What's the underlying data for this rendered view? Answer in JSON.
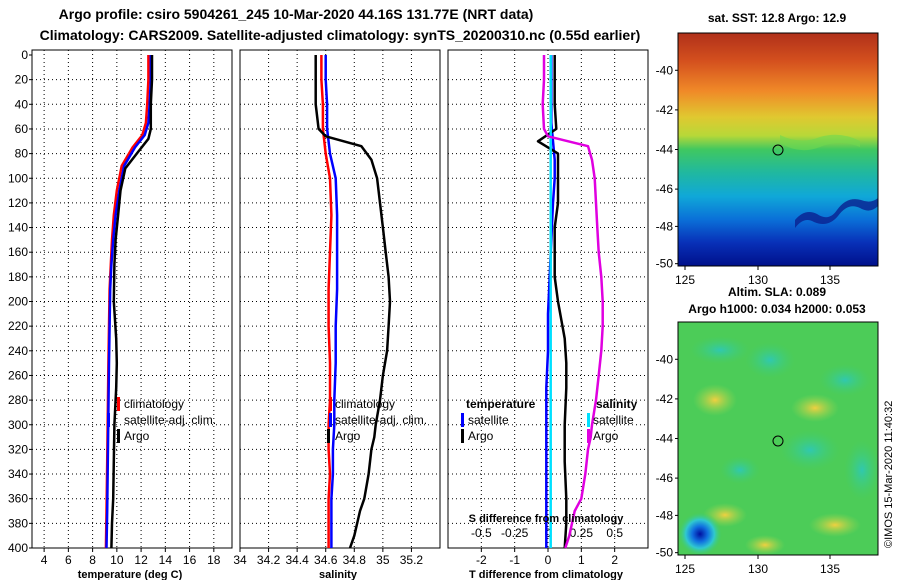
{
  "header": {
    "title_line1": "Argo profile: csiro 5904261_245 10-Mar-2020 44.16S 131.77E (NRT data)",
    "title_line2": "Climatology: CARS2009. Satellite-adjusted climatology: synTS_20200310.nc (0.55d earlier)"
  },
  "sst_map": {
    "title": "sat. SST: 12.8 Argo: 12.9",
    "lon_ticks": [
      "125",
      "130",
      "135"
    ],
    "lat_ticks": [
      "-40",
      "-42",
      "-44",
      "-46",
      "-48",
      "-50"
    ]
  },
  "sla_map": {
    "title_line1": "Altim. SLA: 0.089",
    "title_line2": "Argo h1000: 0.034 h2000: 0.053",
    "lon_ticks": [
      "125",
      "130",
      "135"
    ],
    "lat_ticks": [
      "-40",
      "-42",
      "-44",
      "-46",
      "-48",
      "-50"
    ]
  },
  "footer": {
    "stamp": "©IMOS 15-Mar-2020 11:40:32"
  },
  "colors": {
    "argo": "#000000",
    "climatology": "#ff0000",
    "satellite": "#0000ff",
    "sat_salinity": "#00e0ff",
    "salinity_diff": "#e000e0"
  },
  "chart_data": [
    {
      "type": "line",
      "xlabel": "temperature (deg C)",
      "ylabel": "",
      "xlim": [
        3,
        19.5
      ],
      "ylim": [
        400,
        0
      ],
      "x_ticks": [
        4,
        6,
        8,
        10,
        12,
        14,
        16,
        18
      ],
      "y_ticks": [
        0,
        20,
        40,
        60,
        80,
        100,
        120,
        140,
        160,
        180,
        200,
        220,
        240,
        260,
        280,
        300,
        320,
        340,
        360,
        380,
        400
      ],
      "legend": [
        "climatology",
        "satellite-adj. clim.",
        "Argo"
      ],
      "series": [
        {
          "name": "climatology",
          "color": "#ff0000",
          "x": [
            12.6,
            12.6,
            12.5,
            12.4,
            12.1,
            11.3,
            10.4,
            10.0,
            9.75,
            9.6,
            9.5,
            9.4,
            9.35,
            9.3,
            9.25,
            9.2,
            9.15,
            9.1
          ],
          "y": [
            0,
            20,
            40,
            55,
            65,
            75,
            90,
            110,
            130,
            150,
            170,
            190,
            220,
            250,
            290,
            330,
            370,
            400
          ]
        },
        {
          "name": "satellite-adj. clim.",
          "color": "#0000ff",
          "x": [
            12.8,
            12.8,
            12.7,
            12.6,
            12.3,
            11.5,
            10.6,
            10.2,
            9.9,
            9.7,
            9.55,
            9.45,
            9.4,
            9.35,
            9.3,
            9.25,
            9.2,
            9.15
          ],
          "y": [
            0,
            20,
            40,
            55,
            65,
            75,
            90,
            110,
            130,
            150,
            170,
            190,
            220,
            250,
            290,
            330,
            370,
            400
          ]
        },
        {
          "name": "Argo",
          "color": "#000000",
          "x": [
            12.9,
            12.9,
            12.8,
            12.8,
            12.6,
            11.8,
            10.7,
            10.3,
            10.1,
            9.9,
            9.8,
            9.75,
            9.95,
            10.0,
            9.95,
            9.8,
            9.75,
            9.7,
            9.6,
            9.55
          ],
          "y": [
            0,
            20,
            40,
            60,
            68,
            78,
            92,
            110,
            130,
            150,
            170,
            200,
            230,
            250,
            270,
            300,
            330,
            360,
            380,
            400
          ]
        }
      ]
    },
    {
      "type": "line",
      "xlabel": "salinity",
      "ylabel": "",
      "xlim": [
        34.0,
        35.4
      ],
      "ylim": [
        400,
        0
      ],
      "x_ticks": [
        34,
        34.2,
        34.4,
        34.6,
        34.8,
        35,
        35.2
      ],
      "x_tick_labels": [
        "34",
        "34.2",
        "34.4",
        "34.6",
        "34.8",
        "35",
        "35.2"
      ],
      "legend": [
        "climatology",
        "satellite-adj. clim.",
        "Argo"
      ],
      "series": [
        {
          "name": "climatology",
          "color": "#ff0000",
          "x": [
            34.57,
            34.57,
            34.58,
            34.58,
            34.6,
            34.63,
            34.64,
            34.63,
            34.62,
            34.62,
            34.63,
            34.63,
            34.62,
            34.62,
            34.63,
            34.62,
            34.62,
            34.62
          ],
          "y": [
            0,
            20,
            40,
            60,
            80,
            100,
            130,
            160,
            190,
            220,
            250,
            280,
            300,
            320,
            340,
            360,
            380,
            400
          ]
        },
        {
          "name": "satellite-adj. clim.",
          "color": "#0000ff",
          "x": [
            34.6,
            34.6,
            34.61,
            34.61,
            34.63,
            34.67,
            34.68,
            34.68,
            34.68,
            34.67,
            34.67,
            34.66,
            34.66,
            34.65,
            34.65,
            34.64,
            34.64,
            34.64
          ],
          "y": [
            0,
            20,
            40,
            60,
            80,
            100,
            130,
            160,
            190,
            220,
            250,
            280,
            300,
            320,
            340,
            360,
            380,
            400
          ]
        },
        {
          "name": "Argo",
          "color": "#000000",
          "x": [
            34.53,
            34.53,
            34.53,
            34.55,
            34.6,
            34.85,
            34.92,
            34.96,
            34.98,
            35.0,
            35.02,
            35.04,
            35.05,
            35.04,
            35.03,
            35.0,
            34.98,
            34.95,
            34.94,
            34.92,
            34.9,
            34.87,
            34.84,
            34.8,
            34.77
          ],
          "y": [
            0,
            20,
            40,
            60,
            66,
            74,
            85,
            100,
            120,
            140,
            160,
            180,
            200,
            220,
            240,
            260,
            280,
            300,
            310,
            320,
            340,
            360,
            370,
            390,
            400
          ]
        }
      ]
    },
    {
      "type": "line",
      "xlabel": "T difference from climatology",
      "top_label": "S difference from climatology",
      "xlim": [
        -3,
        3
      ],
      "ylim": [
        400,
        0
      ],
      "x_ticks": [
        -2,
        -1,
        0,
        1,
        2
      ],
      "top_ticks": [
        -0.5,
        -0.25,
        0,
        0.25,
        0.5
      ],
      "top_tick_labels": [
        "-0.5",
        "-0.25",
        "0",
        "0.25",
        "0.5"
      ],
      "legend_temperature": {
        "heading": "temperature",
        "items": [
          "satellite",
          "Argo"
        ]
      },
      "legend_salinity": {
        "heading": "salinity",
        "items": [
          "satellite",
          "Argo"
        ]
      },
      "series": [
        {
          "name": "temperature satellite",
          "color": "#0000ff",
          "axis": "T",
          "x": [
            0.1,
            0.1,
            0.1,
            0.1,
            0.15,
            0.2,
            0.2,
            0.15,
            0.1,
            0.05,
            0.0,
            0.0,
            -0.05,
            -0.05,
            -0.05,
            -0.05,
            -0.05,
            -0.05
          ],
          "y": [
            0,
            20,
            40,
            55,
            70,
            85,
            100,
            120,
            150,
            180,
            210,
            240,
            270,
            300,
            330,
            360,
            380,
            400
          ]
        },
        {
          "name": "temperature Argo",
          "color": "#000000",
          "axis": "T",
          "x": [
            0.2,
            0.2,
            0.2,
            0.25,
            -0.3,
            0.3,
            0.3,
            0.3,
            0.2,
            0.2,
            0.2,
            0.3,
            0.5,
            0.55,
            0.55,
            0.5,
            0.5,
            0.55,
            0.55,
            0.5
          ],
          "y": [
            0,
            20,
            40,
            60,
            70,
            80,
            100,
            120,
            140,
            160,
            180,
            200,
            230,
            250,
            270,
            300,
            330,
            360,
            380,
            400
          ]
        },
        {
          "name": "salinity satellite",
          "color": "#00e0ff",
          "axis": "S",
          "x": [
            0.02,
            0.02,
            0.02,
            0.02,
            0.02,
            0.02,
            0.02,
            0.02,
            0.02,
            0.02,
            0.02,
            0.02,
            0.02,
            0.02,
            0.02,
            0.02,
            0.02,
            0.02
          ],
          "y": [
            0,
            20,
            40,
            60,
            80,
            100,
            130,
            160,
            190,
            220,
            250,
            280,
            300,
            320,
            340,
            360,
            380,
            400
          ]
        },
        {
          "name": "salinity Argo",
          "color": "#e000e0",
          "axis": "S",
          "x": [
            -0.03,
            -0.03,
            -0.04,
            -0.03,
            0.0,
            0.3,
            0.33,
            0.35,
            0.36,
            0.37,
            0.38,
            0.4,
            0.41,
            0.41,
            0.4,
            0.38,
            0.36,
            0.33,
            0.32,
            0.3,
            0.28,
            0.25,
            0.2,
            0.16,
            0.13
          ],
          "y": [
            0,
            20,
            40,
            60,
            66,
            74,
            85,
            100,
            120,
            140,
            160,
            180,
            200,
            220,
            240,
            260,
            280,
            300,
            310,
            320,
            340,
            360,
            370,
            390,
            400
          ]
        }
      ]
    }
  ]
}
